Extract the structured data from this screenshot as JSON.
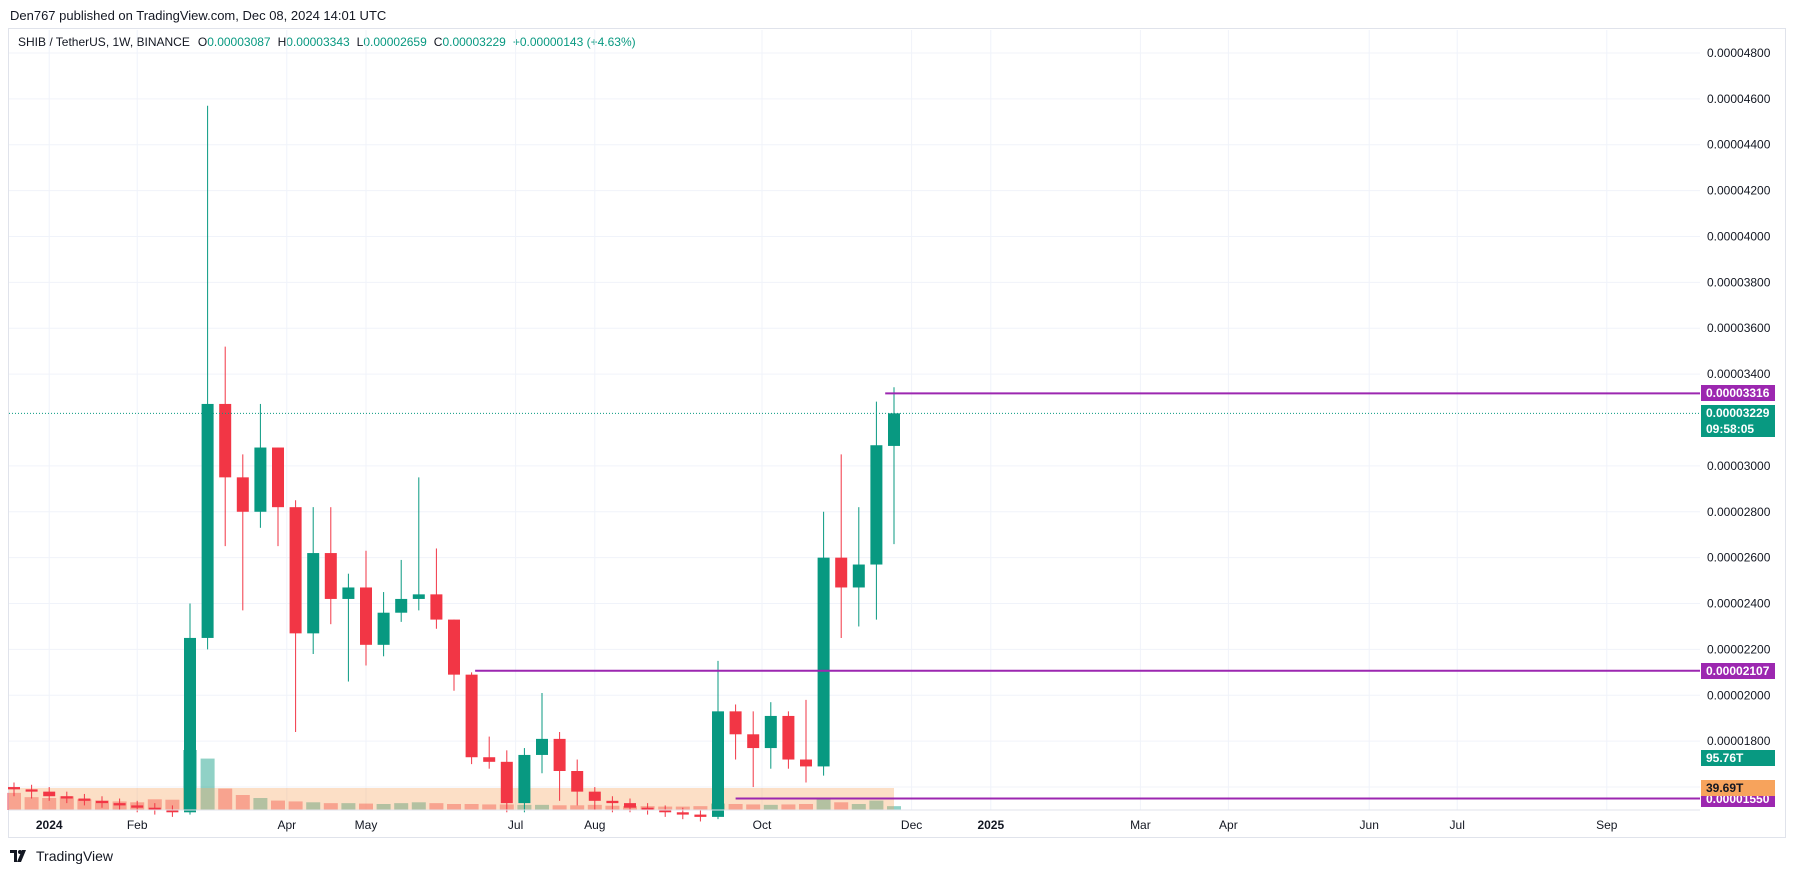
{
  "header": {
    "published": "Den767 published on TradingView.com, Dec 08, 2024 14:01 UTC"
  },
  "legend": {
    "symbol": "SHIB / TetherUS, 1W, BINANCE",
    "open_label": "O",
    "open": "0.00003087",
    "high_label": "H",
    "high": "0.00003343",
    "low_label": "L",
    "low": "0.00002659",
    "close_label": "C",
    "close": "0.00003229",
    "change": "+0.00000143 (+4.63%)"
  },
  "footer": {
    "brand": "TradingView"
  },
  "colors": {
    "up": "#089981",
    "down": "#f23645",
    "level": "#9c27b0",
    "vol_base": "#f7a35c"
  },
  "chart_data": {
    "type": "candlestick",
    "interval": "1W",
    "yaxis": {
      "min": 1.5e-05,
      "max": 4.9e-05,
      "ticks": [
        "0.00004800",
        "0.00004600",
        "0.00004400",
        "0.00004200",
        "0.00004000",
        "0.00003800",
        "0.00003600",
        "0.00003400",
        "0.00003000",
        "0.00002800",
        "0.00002600",
        "0.00002400",
        "0.00002200",
        "0.00002000",
        "0.00001800",
        "0.00001600"
      ]
    },
    "xaxis": {
      "labels": [
        {
          "text": "2024",
          "bold": true,
          "week": 2
        },
        {
          "text": "Feb",
          "week": 7
        },
        {
          "text": "Apr",
          "week": 15.5
        },
        {
          "text": "May",
          "week": 20
        },
        {
          "text": "Jul",
          "week": 28.5
        },
        {
          "text": "Aug",
          "week": 33
        },
        {
          "text": "Oct",
          "week": 42.5
        },
        {
          "text": "Dec",
          "week": 51
        },
        {
          "text": "2025",
          "bold": true,
          "week": 55.5
        },
        {
          "text": "Mar",
          "week": 64
        },
        {
          "text": "Apr",
          "week": 69
        },
        {
          "text": "Jun",
          "week": 77
        },
        {
          "text": "Jul",
          "week": 82
        },
        {
          "text": "Sep",
          "week": 90.5
        }
      ],
      "week_count": 99
    },
    "candles": [
      [
        1.6e-05,
        1.62e-05,
        1.56e-05,
        1.59e-05,
        40
      ],
      [
        1.59e-05,
        1.61e-05,
        1.55e-05,
        1.58e-05,
        30
      ],
      [
        1.58e-05,
        1.6e-05,
        1.54e-05,
        1.56e-05,
        28
      ],
      [
        1.56e-05,
        1.58e-05,
        1.53e-05,
        1.55e-05,
        32
      ],
      [
        1.55e-05,
        1.57e-05,
        1.52e-05,
        1.54e-05,
        25
      ],
      [
        1.54e-05,
        1.56e-05,
        1.51e-05,
        1.53e-05,
        22
      ],
      [
        1.53e-05,
        1.55e-05,
        1.5e-05,
        1.52e-05,
        20
      ],
      [
        1.52e-05,
        1.54e-05,
        1.49e-05,
        1.51e-05,
        18
      ],
      [
        1.51e-05,
        1.53e-05,
        1.48e-05,
        1.5e-05,
        25
      ],
      [
        1.5e-05,
        1.52e-05,
        1.47e-05,
        1.49e-05,
        24
      ],
      [
        1.49e-05,
        2.4e-05,
        1.48e-05,
        2.25e-05,
        140
      ],
      [
        2.25e-05,
        4.57e-05,
        2.2e-05,
        3.27e-05,
        120
      ],
      [
        3.27e-05,
        3.52e-05,
        2.65e-05,
        2.95e-05,
        50
      ],
      [
        2.95e-05,
        3.05e-05,
        2.37e-05,
        2.8e-05,
        35
      ],
      [
        2.8e-05,
        3.27e-05,
        2.73e-05,
        3.08e-05,
        28
      ],
      [
        3.08e-05,
        3.08e-05,
        2.65e-05,
        2.82e-05,
        22
      ],
      [
        2.82e-05,
        2.85e-05,
        1.84e-05,
        2.27e-05,
        20
      ],
      [
        2.27e-05,
        2.82e-05,
        2.18e-05,
        2.62e-05,
        18
      ],
      [
        2.62e-05,
        2.82e-05,
        2.31e-05,
        2.42e-05,
        16
      ],
      [
        2.42e-05,
        2.53e-05,
        2.06e-05,
        2.47e-05,
        16
      ],
      [
        2.47e-05,
        2.63e-05,
        2.13e-05,
        2.22e-05,
        15
      ],
      [
        2.22e-05,
        2.45e-05,
        2.17e-05,
        2.36e-05,
        14
      ],
      [
        2.36e-05,
        2.59e-05,
        2.32e-05,
        2.42e-05,
        16
      ],
      [
        2.42e-05,
        2.95e-05,
        2.37e-05,
        2.44e-05,
        18
      ],
      [
        2.44e-05,
        2.64e-05,
        2.29e-05,
        2.33e-05,
        16
      ],
      [
        2.33e-05,
        2.33e-05,
        2.02e-05,
        2.09e-05,
        14
      ],
      [
        2.09e-05,
        2.1e-05,
        1.7e-05,
        1.73e-05,
        14
      ],
      [
        1.73e-05,
        1.82e-05,
        1.68e-05,
        1.71e-05,
        13
      ],
      [
        1.71e-05,
        1.76e-05,
        1.49e-05,
        1.53e-05,
        13
      ],
      [
        1.53e-05,
        1.77e-05,
        1.49e-05,
        1.74e-05,
        12
      ],
      [
        1.74e-05,
        2.01e-05,
        1.66e-05,
        1.81e-05,
        12
      ],
      [
        1.81e-05,
        1.84e-05,
        1.54e-05,
        1.67e-05,
        11
      ],
      [
        1.67e-05,
        1.72e-05,
        1.52e-05,
        1.58e-05,
        11
      ],
      [
        1.58e-05,
        1.6e-05,
        1.5e-05,
        1.54e-05,
        12
      ],
      [
        1.54e-05,
        1.56e-05,
        1.49e-05,
        1.53e-05,
        10
      ],
      [
        1.53e-05,
        1.55e-05,
        1.49e-05,
        1.51e-05,
        9
      ],
      [
        1.51e-05,
        1.53e-05,
        1.48e-05,
        1.5e-05,
        9
      ],
      [
        1.5e-05,
        1.52e-05,
        1.47e-05,
        1.49e-05,
        8
      ],
      [
        1.49e-05,
        1.51e-05,
        1.46e-05,
        1.48e-05,
        8
      ],
      [
        1.48e-05,
        1.5e-05,
        1.45e-05,
        1.47e-05,
        9
      ],
      [
        1.47e-05,
        2.15e-05,
        1.46e-05,
        1.93e-05,
        15
      ],
      [
        1.93e-05,
        1.96e-05,
        1.72e-05,
        1.83e-05,
        14
      ],
      [
        1.83e-05,
        1.93e-05,
        1.6e-05,
        1.77e-05,
        13
      ],
      [
        1.77e-05,
        1.97e-05,
        1.68e-05,
        1.91e-05,
        12
      ],
      [
        1.91e-05,
        1.93e-05,
        1.68e-05,
        1.72e-05,
        13
      ],
      [
        1.72e-05,
        1.98e-05,
        1.62e-05,
        1.69e-05,
        14
      ],
      [
        1.69e-05,
        2.8e-05,
        1.65e-05,
        2.6e-05,
        25
      ],
      [
        2.6e-05,
        3.05e-05,
        2.25e-05,
        2.47e-05,
        18
      ],
      [
        2.47e-05,
        2.82e-05,
        2.3e-05,
        2.57e-05,
        14
      ],
      [
        2.57e-05,
        3.28e-05,
        2.33e-05,
        3.09e-05,
        22
      ],
      [
        3.087e-05,
        3.343e-05,
        2.659e-05,
        3.229e-05,
        9
      ]
    ],
    "volume_labels": {
      "current": "95.76T",
      "ma": "39.69T"
    },
    "levels": [
      {
        "value": 3.316e-05,
        "label": "0.00003316",
        "from_week": 49.5
      },
      {
        "value": 2.107e-05,
        "label": "0.00002107",
        "from_week": 26.2
      },
      {
        "value": 1.55e-05,
        "label": "0.00001550",
        "from_week": 41.0
      }
    ],
    "last_price": {
      "value": 3.229e-05,
      "label": "0.00003229",
      "countdown": "09:58:05"
    }
  }
}
